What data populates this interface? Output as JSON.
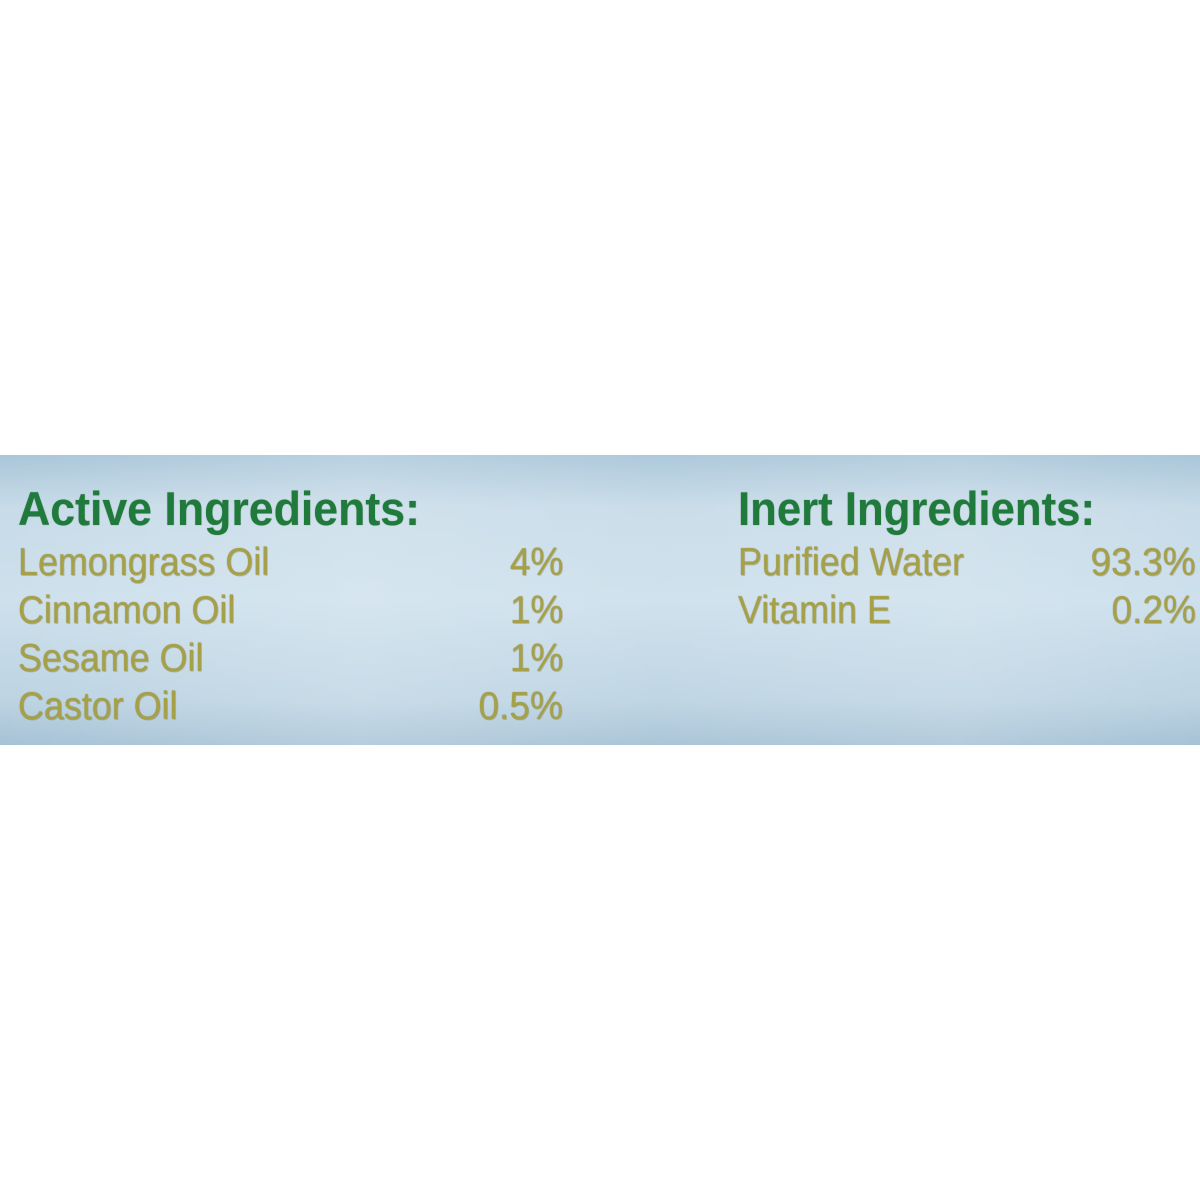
{
  "label": {
    "active": {
      "title": "Active Ingredients:",
      "items": [
        {
          "name": "Lemongrass Oil",
          "percent": "4%"
        },
        {
          "name": "Cinnamon Oil",
          "percent": "1%"
        },
        {
          "name": "Sesame Oil",
          "percent": "1%"
        },
        {
          "name": "Castor Oil",
          "percent": "0.5%"
        }
      ]
    },
    "inert": {
      "title": "Inert Ingredients:",
      "items": [
        {
          "name": "Purified Water",
          "percent": "93.3%"
        },
        {
          "name": "Vitamin E",
          "percent": "0.2%"
        }
      ]
    }
  },
  "colors": {
    "title_green": "#1f7a3c",
    "text_olive": "#a6a048",
    "band_blue": "#c7dbe8"
  }
}
